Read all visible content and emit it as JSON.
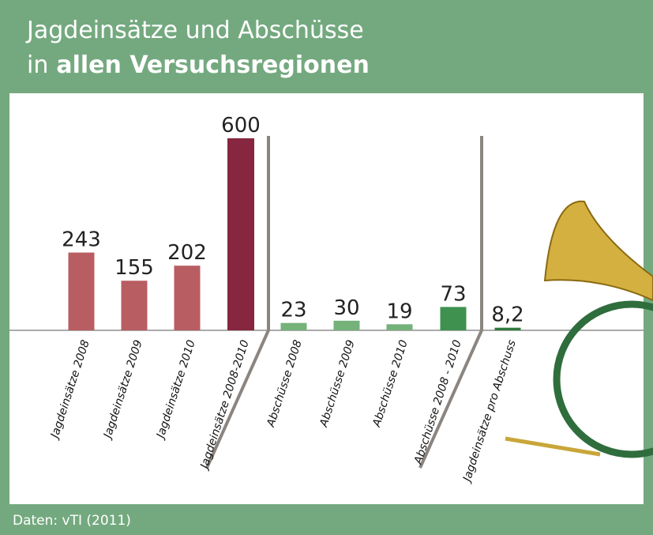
{
  "chart_data": {
    "type": "bar",
    "title": {
      "line1": "Jagdeinsätze und Abschüsse",
      "line2_start": "in",
      "line2_bold": "allen Versuchsregionen"
    },
    "categories": [
      "Jagdeinsätze 2008",
      "Jagdeinsätze 2009",
      "Jagdeinsätze 2010",
      "Jagdeinsätze 2008-2010",
      "Abschüsse 2008",
      "Abschüsse 2009",
      "Abschüsse 2010",
      "Abschüsse 2008 - 2010",
      "Jagdeinsätze pro Abschuss"
    ],
    "values": [
      243,
      155,
      202,
      600,
      23,
      30,
      19,
      73,
      8.2
    ],
    "value_labels": [
      "243",
      "155",
      "202",
      "600",
      "23",
      "30",
      "19",
      "73",
      "8,2"
    ],
    "colors": [
      "#b85d62",
      "#b85d62",
      "#b85d62",
      "#87263f",
      "#74b27a",
      "#74b27a",
      "#74b27a",
      "#3f9150",
      "#2f7a3c"
    ],
    "source": "Daten: vTI (2011)"
  }
}
